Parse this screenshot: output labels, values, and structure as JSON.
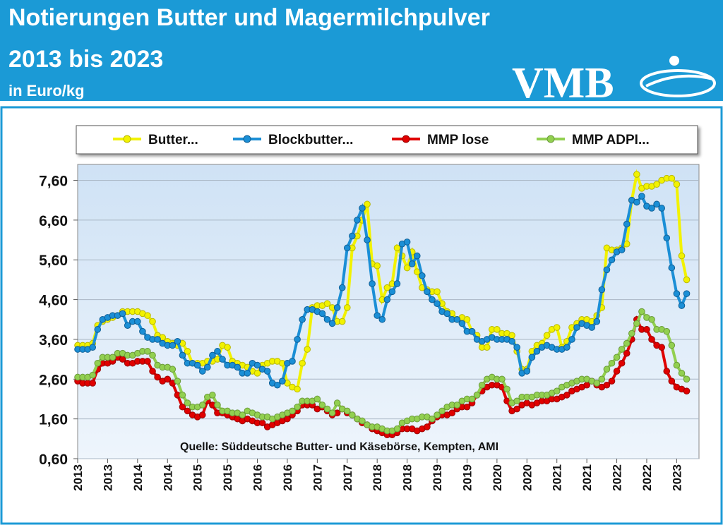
{
  "chart_data": {
    "type": "line",
    "title": "Notierungen Butter und Magermilchpulver",
    "subtitle": "2013 bis 2023",
    "unit": "in Euro/kg",
    "logo": "VMB",
    "annotation": "Quelle: Süddeutsche Butter- und Käsebörse, Kempten, AMI",
    "categories": [
      "2013",
      null,
      null,
      null,
      null,
      null,
      "2013",
      null,
      null,
      null,
      null,
      null,
      "2014",
      null,
      null,
      null,
      null,
      null,
      "2014",
      null,
      null,
      null,
      null,
      null,
      "2015",
      null,
      null,
      null,
      null,
      null,
      "2015",
      null,
      null,
      null,
      null,
      null,
      "2016",
      null,
      null,
      null,
      null,
      null,
      "2016",
      null,
      null,
      null,
      null,
      null,
      "2017",
      null,
      null,
      null,
      null,
      null,
      "2017",
      null,
      null,
      null,
      null,
      null,
      "2018",
      null,
      null,
      null,
      null,
      null,
      "2018",
      null,
      null,
      null,
      null,
      null,
      "2019",
      null,
      null,
      null,
      null,
      null,
      "2019",
      null,
      null,
      null,
      null,
      null,
      "2020",
      null,
      null,
      null,
      null,
      null,
      "2020",
      null,
      null,
      null,
      null,
      null,
      "2021",
      null,
      null,
      null,
      null,
      null,
      "2021",
      null,
      null,
      null,
      null,
      null,
      "2022",
      null,
      null,
      null,
      null,
      null,
      "2022",
      null,
      null,
      null,
      null,
      null,
      "2023",
      null,
      null
    ],
    "ylim": [
      0.6,
      8.0
    ],
    "yticks": [
      {
        "value": 0.6,
        "label": "0,60"
      },
      {
        "value": 1.6,
        "label": "1,60"
      },
      {
        "value": 2.6,
        "label": "2,60"
      },
      {
        "value": 3.6,
        "label": "3,60"
      },
      {
        "value": 4.6,
        "label": "4,60"
      },
      {
        "value": 5.6,
        "label": "5,60"
      },
      {
        "value": 6.6,
        "label": "6,60"
      },
      {
        "value": 7.6,
        "label": "7,60"
      }
    ],
    "grid": true,
    "legend": "top",
    "series": [
      {
        "name": "Butter...",
        "color": "#f2f200",
        "values": [
          3.45,
          3.45,
          3.45,
          3.5,
          3.95,
          4.05,
          4.1,
          4.15,
          4.2,
          4.3,
          4.3,
          4.3,
          4.3,
          4.25,
          4.2,
          4.05,
          3.7,
          3.65,
          3.55,
          3.5,
          3.45,
          3.5,
          3.3,
          3.0,
          3.0,
          3.0,
          3.05,
          3.05,
          3.1,
          3.45,
          3.4,
          3.05,
          3.0,
          2.95,
          2.9,
          2.8,
          2.75,
          2.95,
          3.0,
          3.05,
          3.05,
          3.0,
          2.5,
          2.4,
          2.35,
          3.0,
          3.35,
          4.4,
          4.45,
          4.45,
          4.5,
          4.4,
          4.05,
          4.05,
          4.4,
          5.9,
          6.2,
          6.6,
          7.0,
          5.5,
          5.45,
          4.6,
          4.9,
          5.0,
          5.9,
          5.7,
          5.4,
          5.8,
          5.3,
          4.9,
          4.85,
          4.8,
          4.8,
          4.5,
          4.3,
          4.25,
          4.1,
          4.15,
          4.1,
          3.8,
          3.7,
          3.4,
          3.4,
          3.85,
          3.85,
          3.75,
          3.75,
          3.7,
          3.3,
          2.85,
          2.85,
          3.3,
          3.45,
          3.5,
          3.7,
          3.85,
          3.9,
          3.4,
          3.55,
          3.9,
          4.0,
          4.1,
          4.1,
          4.05,
          4.2,
          4.4,
          5.9,
          5.85,
          5.85,
          5.9,
          6.0,
          7.1,
          7.75,
          7.4,
          7.45,
          7.45,
          7.5,
          7.6,
          7.65,
          7.65,
          7.5,
          5.7,
          5.1
        ]
      },
      {
        "name": "Blockbutter...",
        "color": "#1b8fd6",
        "values": [
          3.35,
          3.35,
          3.35,
          3.4,
          3.85,
          4.1,
          4.15,
          4.2,
          4.2,
          4.25,
          3.95,
          4.05,
          4.05,
          3.8,
          3.65,
          3.6,
          3.6,
          3.5,
          3.45,
          3.45,
          3.55,
          3.2,
          3.0,
          3.0,
          2.95,
          2.8,
          2.9,
          3.2,
          3.3,
          3.1,
          2.95,
          2.95,
          2.9,
          2.75,
          2.75,
          3.0,
          2.95,
          2.85,
          2.8,
          2.5,
          2.45,
          2.55,
          3.0,
          3.05,
          3.6,
          4.1,
          4.35,
          4.35,
          4.3,
          4.25,
          4.1,
          4.0,
          4.4,
          4.9,
          5.9,
          6.2,
          6.6,
          6.9,
          6.1,
          5.0,
          4.2,
          4.1,
          4.6,
          4.8,
          5.0,
          6.0,
          6.05,
          5.5,
          5.7,
          5.2,
          4.8,
          4.6,
          4.5,
          4.3,
          4.25,
          4.1,
          4.1,
          4.0,
          3.8,
          3.8,
          3.6,
          3.55,
          3.6,
          3.65,
          3.6,
          3.6,
          3.6,
          3.55,
          3.4,
          2.75,
          2.8,
          3.15,
          3.3,
          3.4,
          3.45,
          3.4,
          3.35,
          3.35,
          3.4,
          3.6,
          3.9,
          4.0,
          3.95,
          3.9,
          4.05,
          4.85,
          5.35,
          5.6,
          5.8,
          5.85,
          6.5,
          7.1,
          7.05,
          7.2,
          6.95,
          6.9,
          7.0,
          6.9,
          6.15,
          5.4,
          4.75,
          4.45,
          4.75
        ]
      },
      {
        "name": "MMP lose",
        "color": "#e00000",
        "values": [
          2.55,
          2.5,
          2.5,
          2.5,
          2.85,
          3.0,
          3.0,
          3.05,
          3.15,
          3.1,
          3.0,
          3.0,
          3.05,
          3.05,
          3.05,
          2.8,
          2.65,
          2.55,
          2.6,
          2.5,
          2.2,
          1.9,
          1.8,
          1.7,
          1.65,
          1.7,
          2.05,
          1.95,
          1.75,
          1.75,
          1.7,
          1.65,
          1.6,
          1.55,
          1.6,
          1.55,
          1.5,
          1.5,
          1.4,
          1.45,
          1.5,
          1.55,
          1.6,
          1.7,
          1.8,
          1.95,
          1.95,
          1.95,
          1.85,
          1.9,
          1.8,
          1.7,
          1.75,
          1.85,
          1.75,
          1.7,
          1.6,
          1.5,
          1.45,
          1.35,
          1.3,
          1.25,
          1.2,
          1.2,
          1.25,
          1.35,
          1.35,
          1.35,
          1.3,
          1.35,
          1.4,
          1.55,
          1.65,
          1.7,
          1.7,
          1.75,
          1.85,
          1.9,
          1.9,
          2.0,
          2.2,
          2.3,
          2.4,
          2.45,
          2.45,
          2.4,
          2.05,
          1.8,
          1.85,
          1.95,
          2.0,
          1.95,
          2.0,
          2.05,
          2.05,
          2.1,
          2.1,
          2.15,
          2.2,
          2.3,
          2.35,
          2.4,
          2.45,
          2.55,
          2.45,
          2.4,
          2.45,
          2.55,
          2.8,
          3.0,
          3.25,
          3.6,
          4.1,
          3.85,
          3.85,
          3.6,
          3.45,
          3.4,
          2.8,
          2.55,
          2.4,
          2.35,
          2.3
        ]
      },
      {
        "name": "MMP ADPI...",
        "color": "#92d050",
        "values": [
          2.65,
          2.65,
          2.65,
          2.7,
          3.0,
          3.15,
          3.15,
          3.15,
          3.25,
          3.25,
          3.2,
          3.2,
          3.25,
          3.3,
          3.3,
          3.2,
          2.95,
          2.9,
          2.9,
          2.85,
          2.55,
          2.2,
          2.0,
          1.9,
          1.9,
          1.95,
          2.15,
          2.2,
          1.95,
          1.8,
          1.8,
          1.75,
          1.75,
          1.7,
          1.8,
          1.75,
          1.7,
          1.65,
          1.65,
          1.6,
          1.65,
          1.7,
          1.75,
          1.8,
          1.9,
          2.05,
          2.05,
          2.05,
          2.1,
          1.95,
          1.85,
          1.75,
          2.0,
          1.85,
          1.8,
          1.7,
          1.6,
          1.55,
          1.45,
          1.4,
          1.4,
          1.35,
          1.3,
          1.3,
          1.35,
          1.5,
          1.55,
          1.6,
          1.6,
          1.65,
          1.65,
          1.6,
          1.7,
          1.8,
          1.9,
          1.95,
          1.95,
          2.05,
          2.1,
          2.1,
          2.2,
          2.45,
          2.6,
          2.65,
          2.6,
          2.6,
          2.35,
          2.0,
          2.05,
          2.15,
          2.15,
          2.15,
          2.2,
          2.2,
          2.2,
          2.25,
          2.3,
          2.4,
          2.45,
          2.5,
          2.55,
          2.6,
          2.6,
          2.55,
          2.5,
          2.6,
          2.85,
          3.0,
          3.15,
          3.35,
          3.5,
          3.75,
          4.0,
          4.3,
          4.15,
          4.1,
          3.85,
          3.85,
          3.8,
          3.45,
          2.95,
          2.75,
          2.6
        ]
      }
    ]
  }
}
